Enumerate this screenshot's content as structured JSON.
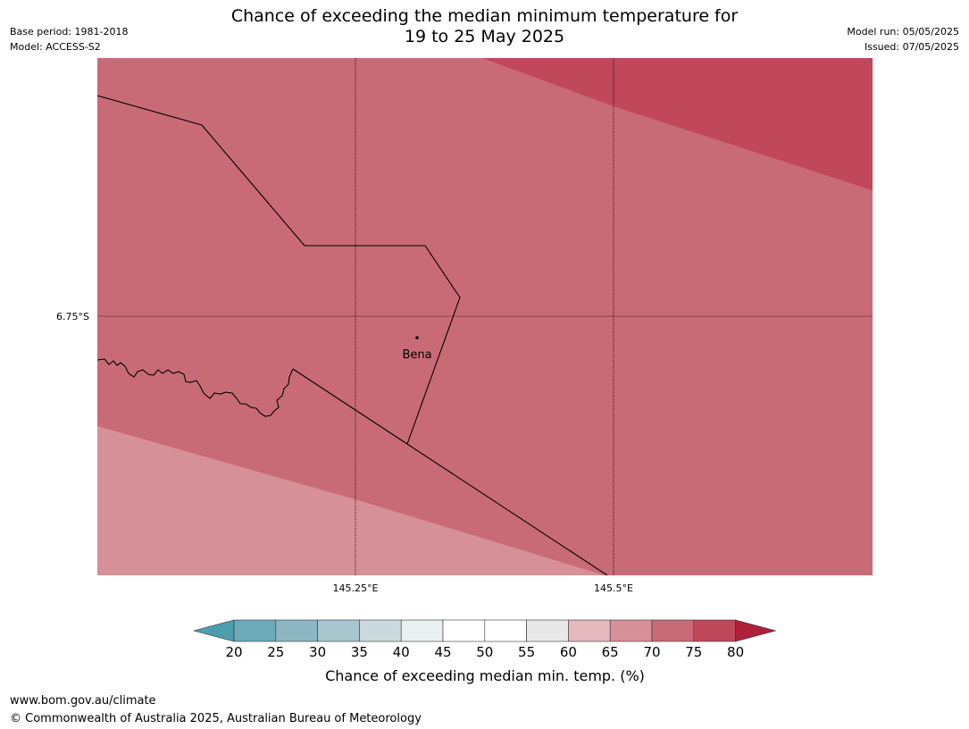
{
  "header": {
    "title_line1": "Chance of exceeding the median minimum temperature for",
    "title_line2": "19 to 25 May 2025",
    "base_period": "Base period: 1981-2018",
    "model": "Model: ACCESS-S2",
    "model_run": "Model run: 05/05/2025",
    "issued": "Issued: 07/05/2025"
  },
  "map": {
    "lat_label": "6.75°S",
    "lon_labels": [
      "145.25°E",
      "145.5°E"
    ],
    "place": "Bena",
    "zones": [
      {
        "category": "75-80",
        "color": "#c1475a"
      },
      {
        "category": "70-75",
        "color": "#c96b76"
      },
      {
        "category": "65-70",
        "color": "#d69097"
      }
    ]
  },
  "legend": {
    "title": "Chance of exceeding median min. temp. (%)",
    "ticks": [
      "20",
      "25",
      "30",
      "35",
      "40",
      "45",
      "50",
      "55",
      "60",
      "65",
      "70",
      "75",
      "80"
    ],
    "low_extend_color": "#4c9eae",
    "high_extend_color": "#b0203b",
    "bins": [
      {
        "range": "20-25",
        "color": "#6eaab9"
      },
      {
        "range": "25-30",
        "color": "#8bb7c3"
      },
      {
        "range": "30-35",
        "color": "#a8c6cd"
      },
      {
        "range": "35-40",
        "color": "#c9d9de"
      },
      {
        "range": "40-45",
        "color": "#e8f0f2"
      },
      {
        "range": "45-50",
        "color": "#ffffff"
      },
      {
        "range": "50-55",
        "color": "#ffffff"
      },
      {
        "range": "55-60",
        "color": "#e8e8e8"
      },
      {
        "range": "60-65",
        "color": "#e5b9bd"
      },
      {
        "range": "65-70",
        "color": "#d69097"
      },
      {
        "range": "70-75",
        "color": "#c96b76"
      },
      {
        "range": "75-80",
        "color": "#c1475a"
      }
    ]
  },
  "footer": {
    "url": "www.bom.gov.au/climate",
    "copyright": "© Commonwealth of Australia 2025, Australian Bureau of Meteorology"
  }
}
